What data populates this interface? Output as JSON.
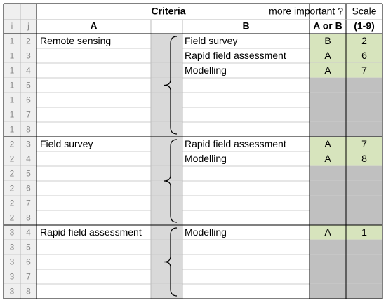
{
  "header": {
    "criteria": "Criteria",
    "more_important": "more important ?",
    "scale": "Scale"
  },
  "columns": [
    "i",
    "j",
    "A",
    "B",
    "A or B",
    "(1-9)"
  ],
  "groups": [
    {
      "a": "Remote sensing",
      "rows": [
        {
          "i": 1,
          "j": 2,
          "b": "Field survey",
          "choice": "B",
          "scale": 2
        },
        {
          "i": 1,
          "j": 3,
          "b": "Rapid field assessment",
          "choice": "A",
          "scale": 6
        },
        {
          "i": 1,
          "j": 4,
          "b": "Modelling",
          "choice": "A",
          "scale": 7
        },
        {
          "i": 1,
          "j": 5
        },
        {
          "i": 1,
          "j": 6
        },
        {
          "i": 1,
          "j": 7
        },
        {
          "i": 1,
          "j": 8
        }
      ]
    },
    {
      "a": "Field survey",
      "rows": [
        {
          "i": 2,
          "j": 3,
          "b": "Rapid field assessment",
          "choice": "A",
          "scale": 7
        },
        {
          "i": 2,
          "j": 4,
          "b": "Modelling",
          "choice": "A",
          "scale": 8
        },
        {
          "i": 2,
          "j": 5
        },
        {
          "i": 2,
          "j": 6
        },
        {
          "i": 2,
          "j": 7
        },
        {
          "i": 2,
          "j": 8
        }
      ]
    },
    {
      "a": "Rapid field assessment",
      "rows": [
        {
          "i": 3,
          "j": 4,
          "b": "Modelling",
          "choice": "A",
          "scale": 1
        },
        {
          "i": 3,
          "j": 5
        },
        {
          "i": 3,
          "j": 6
        },
        {
          "i": 3,
          "j": 7
        },
        {
          "i": 3,
          "j": 8
        }
      ]
    }
  ]
}
